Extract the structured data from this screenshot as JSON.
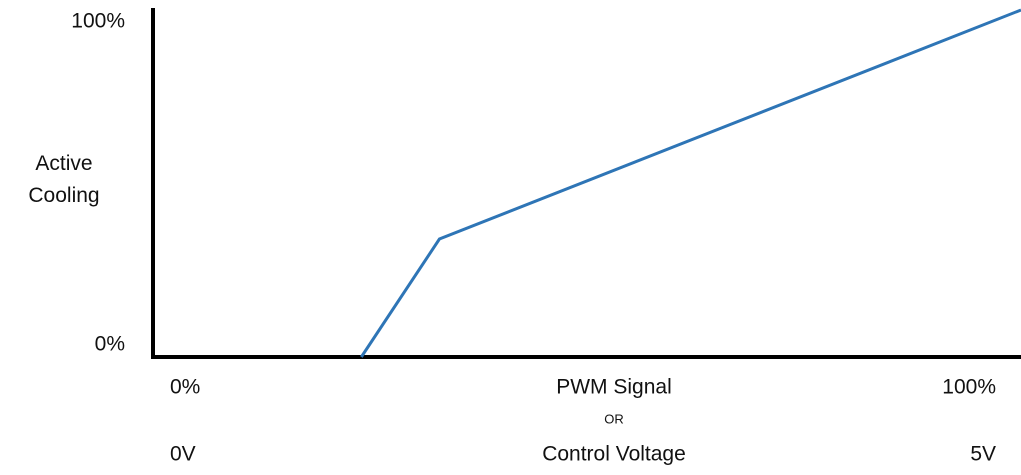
{
  "chart_data": {
    "type": "line",
    "ylabel": "Active Cooling",
    "xlabel": "PWM Signal",
    "xlabel_connector": "OR",
    "x2label": "Control Voltage",
    "x": [
      24,
      33,
      100
    ],
    "series": [
      {
        "color": "#2e75b6",
        "values": [
          0,
          34,
          100
        ]
      }
    ],
    "xlim": [
      0,
      100
    ],
    "xticks": [
      {
        "value": 0,
        "label": "0%"
      },
      {
        "value": 100,
        "label": "100%"
      }
    ],
    "x2lim": [
      0,
      5
    ],
    "x2ticks": [
      {
        "value": 0,
        "label": "0V"
      },
      {
        "value": 5,
        "label": "5V"
      }
    ],
    "ylim": [
      0,
      100
    ],
    "yticks": [
      {
        "value": 0,
        "label": "0%"
      },
      {
        "value": 100,
        "label": "100%"
      }
    ],
    "grid": false
  }
}
